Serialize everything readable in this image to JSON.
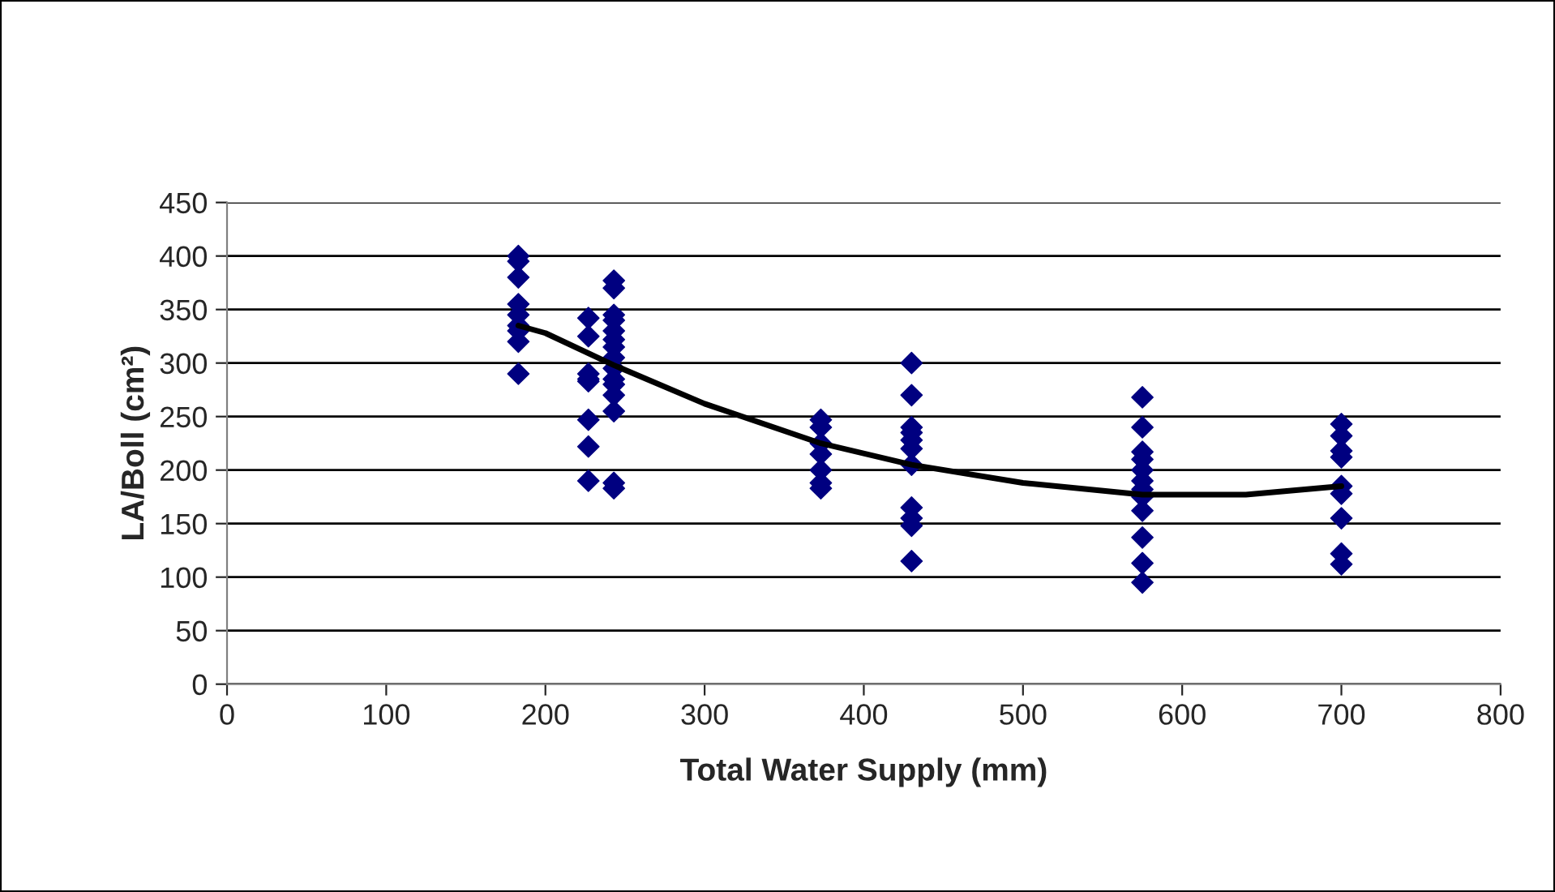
{
  "chart_data": {
    "type": "scatter",
    "xlabel": "Total Water Supply (mm)",
    "ylabel": "LA/Boll (cm²)",
    "xlim": [
      0,
      800
    ],
    "ylim": [
      0,
      450
    ],
    "xticks": [
      0,
      100,
      200,
      300,
      400,
      500,
      600,
      700,
      800
    ],
    "yticks": [
      0,
      50,
      100,
      150,
      200,
      250,
      300,
      350,
      400,
      450
    ],
    "grid": "y",
    "legend": false,
    "series": [
      {
        "color": "#000080",
        "marker": "diamond",
        "x": [
          183,
          183,
          183,
          183,
          183,
          183,
          183,
          183,
          183,
          227,
          227,
          227,
          227,
          227,
          227,
          227,
          227,
          243,
          243,
          243,
          243,
          243,
          243,
          243,
          243,
          243,
          243,
          243,
          243,
          243,
          243,
          243,
          373,
          373,
          373,
          373,
          373,
          373,
          373,
          430,
          430,
          430,
          430,
          430,
          430,
          430,
          430,
          430,
          430,
          430,
          575,
          575,
          575,
          575,
          575,
          575,
          575,
          575,
          575,
          575,
          575,
          575,
          700,
          700,
          700,
          700,
          700,
          700,
          700,
          700,
          700
        ],
        "values": [
          400,
          395,
          380,
          355,
          345,
          335,
          330,
          320,
          290,
          342,
          325,
          290,
          285,
          283,
          247,
          222,
          190,
          377,
          370,
          345,
          340,
          330,
          322,
          315,
          305,
          295,
          285,
          280,
          270,
          255,
          188,
          183,
          247,
          240,
          225,
          215,
          200,
          188,
          183,
          300,
          270,
          240,
          235,
          228,
          220,
          205,
          165,
          155,
          148,
          115,
          268,
          240,
          217,
          210,
          200,
          190,
          182,
          175,
          162,
          137,
          113,
          95,
          243,
          232,
          218,
          212,
          185,
          178,
          155,
          122,
          112
        ]
      },
      {
        "type": "line",
        "color": "#000000",
        "marker": "none",
        "line_style": "solid",
        "x": [
          183,
          200,
          243,
          300,
          373,
          430,
          500,
          575,
          640,
          700
        ],
        "values": [
          335,
          328,
          298,
          262,
          225,
          205,
          188,
          177,
          177,
          185
        ]
      }
    ]
  }
}
